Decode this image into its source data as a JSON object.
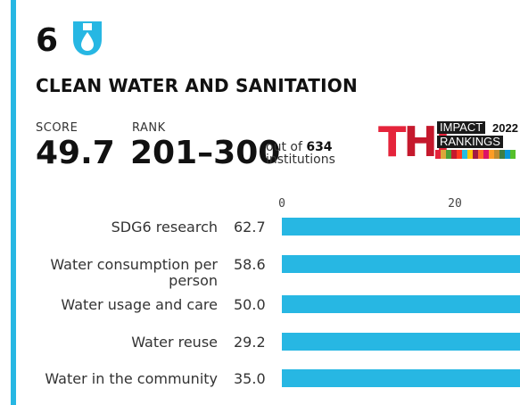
{
  "goal": {
    "number": "6",
    "title": "CLEAN WATER AND SANITATION",
    "icon": "water-drop-icon",
    "color": "#27b7e3"
  },
  "score": {
    "label": "SCORE",
    "value": "49.7"
  },
  "rank": {
    "label": "RANK",
    "value": "201–300",
    "out_of_prefix": "out of",
    "total": "634",
    "suffix": "institutions"
  },
  "logo": {
    "letters": "THE",
    "impact": "IMPACT",
    "rankings": "RANKINGS",
    "year": "2022"
  },
  "chart_data": {
    "type": "bar",
    "orientation": "horizontal",
    "categories": [
      "SDG6 research",
      [
        "Water consumption per",
        "person"
      ],
      "Water usage and care",
      "Water reuse",
      "Water in the community"
    ],
    "values": [
      62.7,
      58.6,
      50.0,
      29.2,
      35.0
    ],
    "value_labels": [
      "62.7",
      "58.6",
      "50.0",
      "29.2",
      "35.0"
    ],
    "x_ticks": [
      0,
      20
    ],
    "x_tick_labels": [
      "0",
      "20"
    ],
    "bar_color": "#27b7e3"
  }
}
